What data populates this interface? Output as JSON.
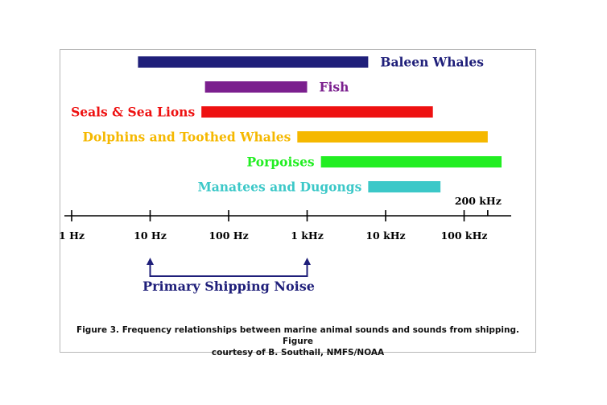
{
  "chart_data": {
    "type": "range-bar",
    "scale": "log",
    "xlim": [
      1,
      200000
    ],
    "ticks": [
      {
        "value": 1,
        "label": "1 Hz"
      },
      {
        "value": 10,
        "label": "10 Hz"
      },
      {
        "value": 100,
        "label": "100 Hz"
      },
      {
        "value": 1000,
        "label": "1 kHz"
      },
      {
        "value": 10000,
        "label": "10 kHz"
      },
      {
        "value": 100000,
        "label": "100 kHz"
      },
      {
        "value": 200000,
        "label": "200 kHz"
      }
    ],
    "series": [
      {
        "name": "Baleen Whales",
        "range": [
          7,
          6000
        ],
        "color": "#1f1f7a",
        "label_side": "right"
      },
      {
        "name": "Fish",
        "range": [
          50,
          1000
        ],
        "color": "#7b1f8e",
        "label_side": "right"
      },
      {
        "name": "Seals & Sea Lions",
        "range": [
          45,
          40000
        ],
        "color": "#ee1111",
        "label_side": "left"
      },
      {
        "name": "Dolphins and Toothed Whales",
        "range": [
          750,
          200000
        ],
        "color": "#f5b800",
        "label_side": "left"
      },
      {
        "name": "Porpoises",
        "range": [
          1500,
          300000
        ],
        "color": "#22ee22",
        "label_side": "left"
      },
      {
        "name": "Manatees and Dugongs",
        "range": [
          6000,
          50000
        ],
        "color": "#3cc8c8",
        "label_side": "left"
      }
    ],
    "shipping_noise": {
      "label": "Primary Shipping Noise",
      "range": [
        10,
        1000
      ],
      "color": "#1f1f7a"
    }
  },
  "caption": {
    "line1": "Figure 3. Frequency relationships between marine animal sounds and sounds from shipping. Figure",
    "line2": "courtesy of B. Southall, NMFS/NOAA"
  }
}
